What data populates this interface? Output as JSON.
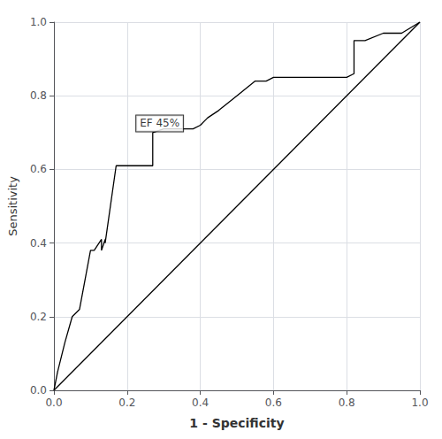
{
  "chart_data": {
    "type": "line",
    "xlabel": "1 - Specificity",
    "ylabel": "Sensitivity",
    "series": [
      {
        "x": [
          0.0,
          1.0
        ],
        "values": [
          0.0,
          1.0
        ],
        "color": "#000000"
      },
      {
        "x": [
          0.0,
          0.01,
          0.03,
          0.05,
          0.07,
          0.1,
          0.11,
          0.13,
          0.13,
          0.14,
          0.14,
          0.17,
          0.27,
          0.27,
          0.3,
          0.38,
          0.4,
          0.42,
          0.45,
          0.5,
          0.55,
          0.58,
          0.6,
          0.65,
          0.7,
          0.75,
          0.8,
          0.82,
          0.82,
          0.85,
          0.9,
          0.95,
          1.0
        ],
        "values": [
          0.0,
          0.05,
          0.13,
          0.2,
          0.22,
          0.38,
          0.38,
          0.41,
          0.38,
          0.41,
          0.4,
          0.61,
          0.61,
          0.7,
          0.71,
          0.71,
          0.72,
          0.74,
          0.76,
          0.8,
          0.84,
          0.84,
          0.85,
          0.85,
          0.85,
          0.85,
          0.85,
          0.86,
          0.95,
          0.95,
          0.97,
          0.97,
          1.0
        ],
        "color": "#000000"
      }
    ],
    "annotations": [
      {
        "text": "EF 45%",
        "x": 0.225,
        "y": 0.725
      }
    ],
    "xlim": [
      0.0,
      1.0
    ],
    "ylim": [
      0.0,
      1.0
    ],
    "xticks": [
      {
        "value": 0.0,
        "label": "0.0"
      },
      0.2,
      0.4,
      0.6,
      0.8,
      {
        "value": 1.0,
        "label": "1.0"
      }
    ],
    "yticks": [
      {
        "value": 0.0,
        "label": "0.0"
      },
      0.2,
      0.4,
      0.6,
      0.8,
      {
        "value": 1.0,
        "label": "1.0"
      }
    ],
    "grid": true
  }
}
